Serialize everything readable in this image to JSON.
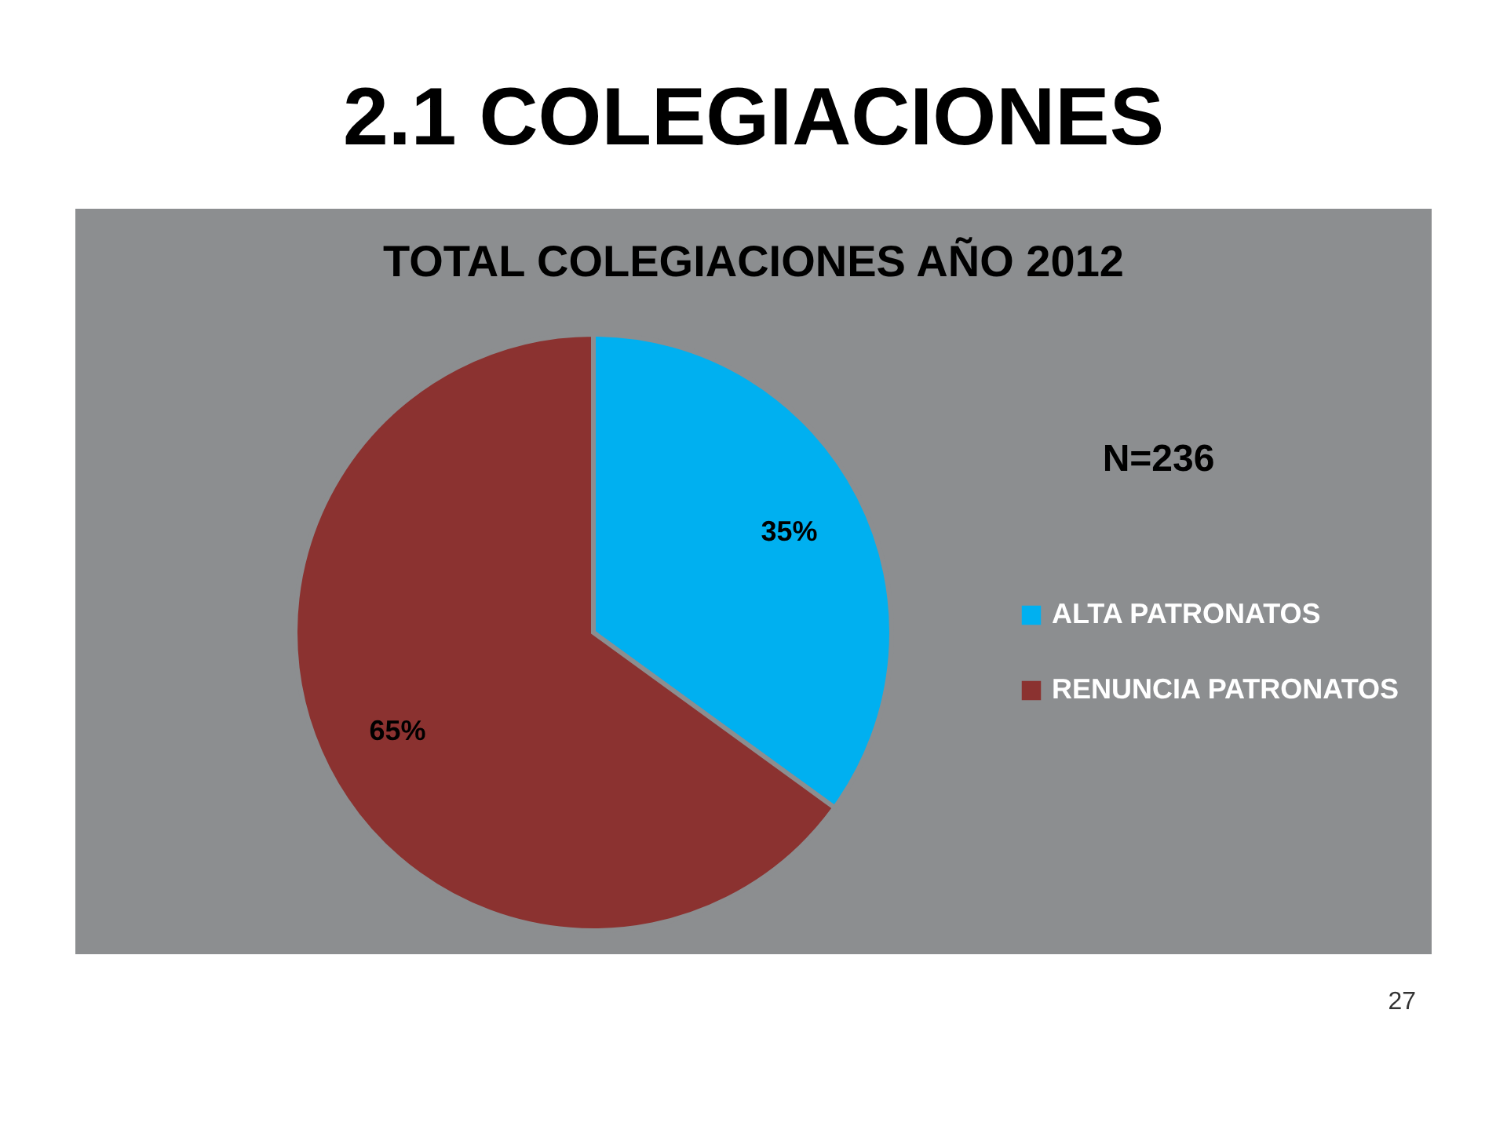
{
  "chart_data": {
    "type": "pie",
    "title": "2.1 COLEGIACIONES",
    "subtitle": "TOTAL COLEGIACIONES  AÑO 2012",
    "categories": [
      "ALTA PATRONATOS",
      "RENUNCIA PATRONATOS"
    ],
    "values": [
      35,
      65
    ],
    "colors": [
      "#00b0f0",
      "#8b3230"
    ],
    "value_labels": [
      "35%",
      "65%"
    ],
    "legend": "right",
    "annotations": [
      "N=236",
      "27"
    ]
  }
}
